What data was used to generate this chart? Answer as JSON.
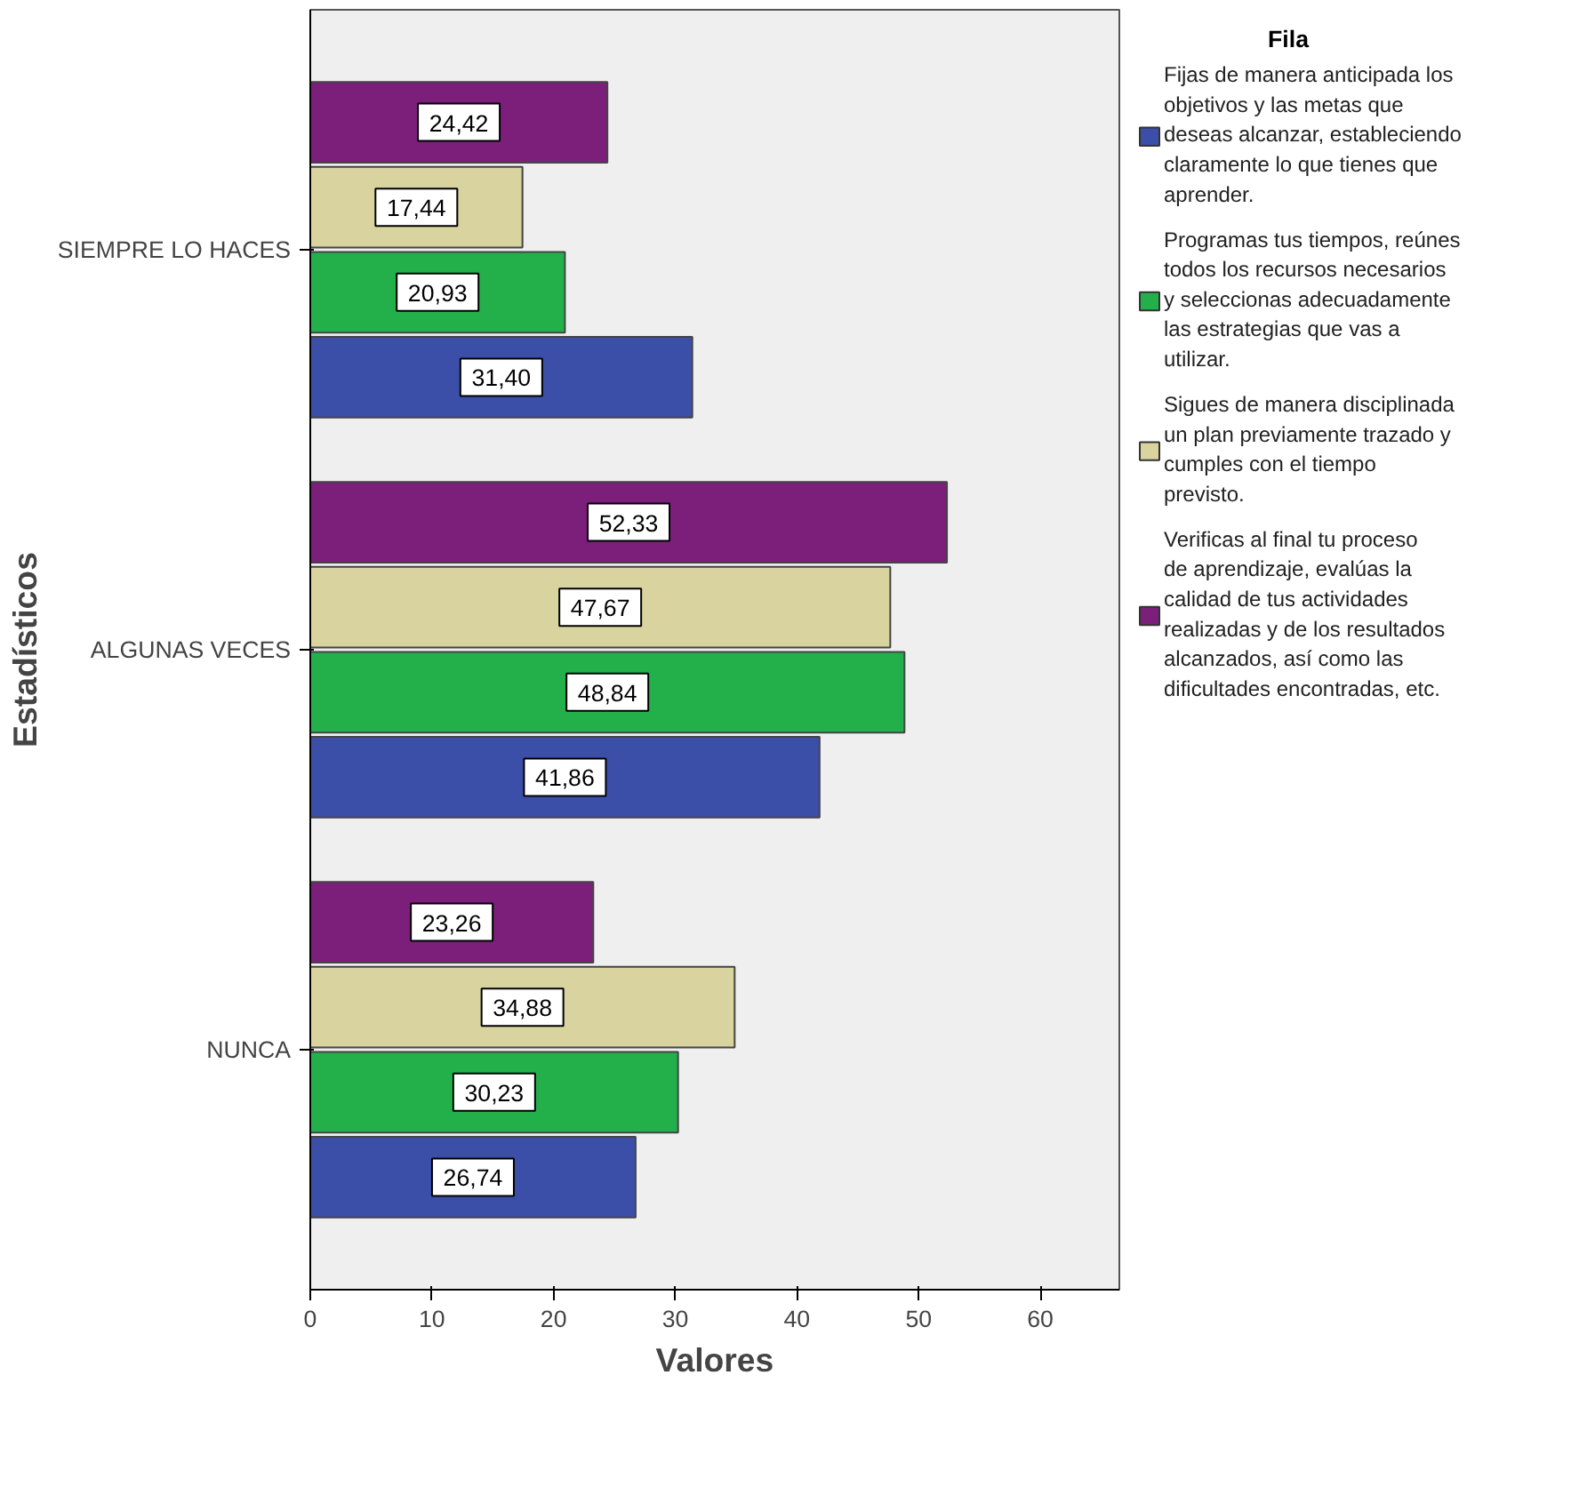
{
  "chart_data": {
    "type": "bar",
    "orientation": "horizontal",
    "xlabel": "Valores",
    "ylabel": "Estadísticos",
    "legend_title": "Fila",
    "legend": "right",
    "grid": false,
    "categories": [
      "SIEMPRE LO HACES",
      "ALGUNAS VECES",
      "NUNCA"
    ],
    "xlim": [
      0,
      66.5
    ],
    "xticks": [
      0,
      10,
      20,
      30,
      40,
      50,
      60
    ],
    "series": [
      {
        "name": "Fijas de manera anticipada los objetivos y las metas que deseas alcanzar, estableciendo claramente lo que tienes que aprender.",
        "color": "#3b4fa8",
        "values": [
          31.4,
          41.86,
          26.74
        ],
        "value_labels": [
          "31,40",
          "41,86",
          "26,74"
        ]
      },
      {
        "name": "Programas tus tiempos, reúnes todos los recursos necesarios y seleccionas adecuadamente las estrategias que vas a utilizar.",
        "color": "#23b04b",
        "values": [
          20.93,
          48.84,
          30.23
        ],
        "value_labels": [
          "20,93",
          "48,84",
          "30,23"
        ]
      },
      {
        "name": "Sigues de manera disciplinada un plan previamente trazado y cumples con el tiempo previsto.",
        "color": "#d9d3a0",
        "values": [
          17.44,
          47.67,
          34.88
        ],
        "value_labels": [
          "17,44",
          "47,67",
          "34,88"
        ]
      },
      {
        "name": "Verificas al final tu proceso de aprendizaje, evalúas la calidad de tus actividades realizadas y de los resultados alcanzados, así como las  dificultades encontradas, etc.",
        "color": "#7b1f7b",
        "values": [
          24.42,
          52.33,
          23.26
        ],
        "value_labels": [
          "24,42",
          "52,33",
          "23,26"
        ]
      }
    ]
  }
}
